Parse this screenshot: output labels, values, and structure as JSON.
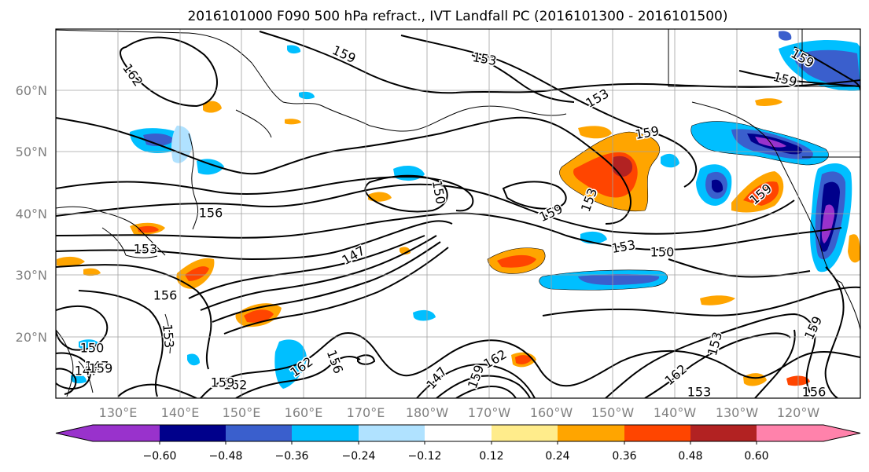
{
  "title": "2016101000 F090 500 hPa refract., IVT Landfall PC (2016101300 - 2016101500)",
  "map": {
    "lat_labels": [
      "60°N",
      "50°N",
      "40°N",
      "30°N",
      "20°N"
    ],
    "lon_labels": [
      "130°E",
      "140°E",
      "150°E",
      "160°E",
      "170°E",
      "180°W",
      "170°W",
      "160°W",
      "150°W",
      "140°W",
      "130°W",
      "120°W"
    ],
    "contour_labels": [
      "162",
      "159",
      "153",
      "159",
      "153",
      "159",
      "156",
      "159",
      "153",
      "150",
      "159",
      "153",
      "159",
      "153",
      "147",
      "150",
      "156",
      "150",
      "153",
      "159",
      "147",
      "162",
      "156",
      "162",
      "159",
      "162",
      "147",
      "159",
      "162",
      "153",
      "153",
      "156",
      "147",
      "159"
    ]
  },
  "colorbar": {
    "tick_labels": [
      "−0.60",
      "−0.48",
      "−0.36",
      "−0.24",
      "−0.12",
      "0.12",
      "0.24",
      "0.36",
      "0.48",
      "0.60"
    ],
    "colors": [
      "#9932cc",
      "#00008b",
      "#3a5fcd",
      "#00bfff",
      "#b0e2ff",
      "#ffffff",
      "#ffec8b",
      "#ffa500",
      "#ff4500",
      "#b22222",
      "#ff82ab"
    ]
  }
}
